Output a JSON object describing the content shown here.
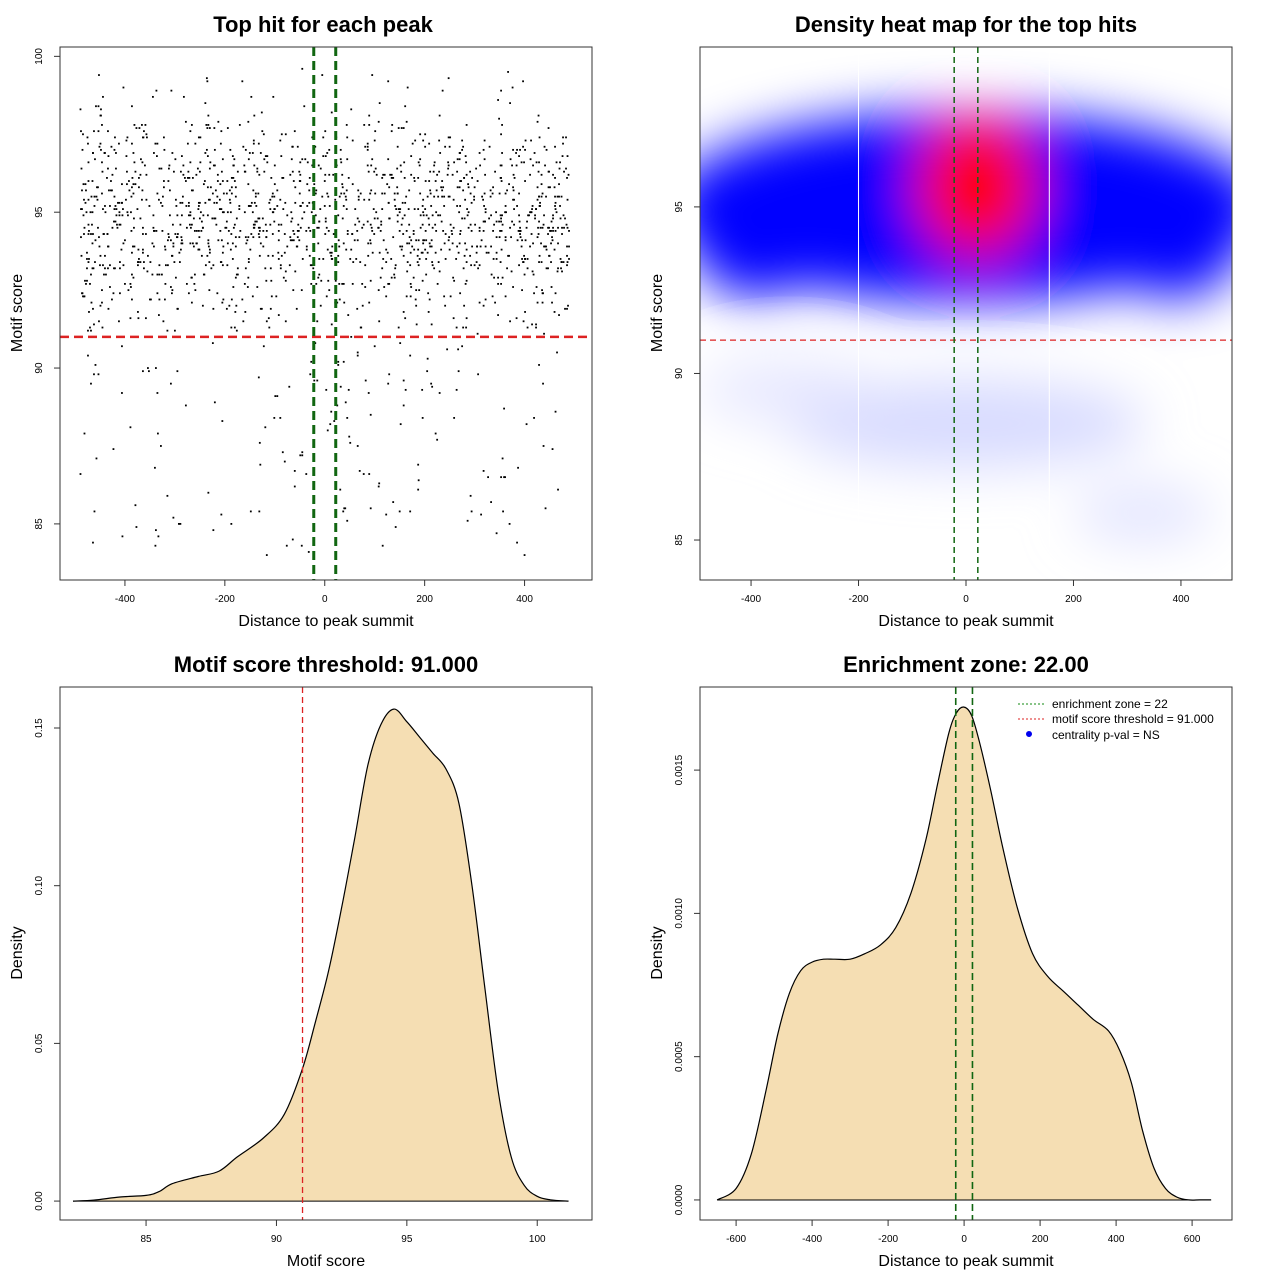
{
  "chart_data": [
    {
      "type": "scatter",
      "title": "Top hit for each peak",
      "xlabel": "Distance to peak summit",
      "ylabel": "Motif score",
      "xlim": [
        -530,
        535
      ],
      "ylim": [
        83.2,
        100.3
      ],
      "xticks": [
        "-400",
        "-200",
        "0",
        "200",
        "400"
      ],
      "yticks": [
        "85",
        "90",
        "95",
        "100"
      ],
      "hline": 91.0,
      "vlines": [
        -22,
        22
      ],
      "points_note_count": 1700,
      "colors": {
        "points": "#000000",
        "hline": "#dd2222",
        "vlines": "#116611"
      }
    },
    {
      "type": "heatmap",
      "title": "Density heat map for the top hits",
      "xlabel": "Distance to peak summit",
      "ylabel": "Motif score",
      "xlim": [
        -495,
        495
      ],
      "ylim": [
        83.8,
        99.8
      ],
      "xticks": [
        "-400",
        "-200",
        "0",
        "200",
        "400"
      ],
      "yticks": [
        "85",
        "90",
        "95"
      ],
      "hline": 91.0,
      "vlines": [
        -22,
        22
      ],
      "white_vlines": [
        -200,
        155
      ],
      "colors": {
        "low": "#ffffff",
        "mid": "#0000ff",
        "high": "#ff0000",
        "hline": "#dd2222",
        "vlines": "#116611"
      }
    },
    {
      "type": "area",
      "title": "Motif score threshold: 91.000",
      "xlabel": "Motif score",
      "ylabel": "Density",
      "xlim": [
        81.7,
        102.1
      ],
      "ylim": [
        -0.006,
        0.163
      ],
      "xticks": [
        "85",
        "90",
        "95",
        "100"
      ],
      "yticks": [
        "0.00",
        "0.05",
        "0.10",
        "0.15"
      ],
      "vline": 91.0,
      "x": [
        82.2,
        83.0,
        84.0,
        85.0,
        85.5,
        86.0,
        87.0,
        87.8,
        88.5,
        89.5,
        90.3,
        91.0,
        91.5,
        92.0,
        92.5,
        93.0,
        93.5,
        94.0,
        94.5,
        95.0,
        95.5,
        96.0,
        96.5,
        97.0,
        97.5,
        98.0,
        98.5,
        99.0,
        99.5,
        100.0,
        100.5,
        101.2
      ],
      "y": [
        0.0,
        0.0003,
        0.0013,
        0.0018,
        0.003,
        0.0055,
        0.0078,
        0.0095,
        0.014,
        0.02,
        0.0275,
        0.042,
        0.057,
        0.073,
        0.093,
        0.115,
        0.138,
        0.151,
        0.156,
        0.152,
        0.147,
        0.142,
        0.137,
        0.126,
        0.1,
        0.067,
        0.035,
        0.014,
        0.005,
        0.0015,
        0.0004,
        0.0
      ],
      "colors": {
        "fill": "#f5deb3",
        "line": "#000000",
        "vline": "#dd2222"
      }
    },
    {
      "type": "area",
      "title": "Enrichment zone: 22.00",
      "xlabel": "Distance to peak summit",
      "ylabel": "Density",
      "xlim": [
        -695,
        705
      ],
      "ylim": [
        -7e-05,
        0.00179
      ],
      "xticks": [
        "-600",
        "-400",
        "-200",
        "0",
        "200",
        "400",
        "600"
      ],
      "yticks": [
        "0.0000",
        "0.0005",
        "0.0010",
        "0.0015"
      ],
      "vlines": [
        -22,
        22
      ],
      "x": [
        -650,
        -600,
        -560,
        -520,
        -490,
        -460,
        -430,
        -400,
        -370,
        -340,
        -300,
        -260,
        -220,
        -180,
        -140,
        -100,
        -70,
        -40,
        -20,
        0,
        20,
        40,
        70,
        100,
        140,
        180,
        220,
        260,
        300,
        340,
        380,
        410,
        440,
        470,
        500,
        530,
        560,
        590,
        620,
        650
      ],
      "y": [
        0.0,
        4e-05,
        0.00016,
        0.00039,
        0.00058,
        0.00072,
        0.0008,
        0.00083,
        0.00084,
        0.00084,
        0.00084,
        0.00086,
        0.00089,
        0.00095,
        0.00107,
        0.00126,
        0.00145,
        0.00163,
        0.0017,
        0.00172,
        0.00169,
        0.0016,
        0.00143,
        0.00124,
        0.00102,
        0.00086,
        0.00078,
        0.00073,
        0.00068,
        0.00063,
        0.00059,
        0.00052,
        0.00041,
        0.00024,
        0.00011,
        4e-05,
        1e-05,
        0.0,
        0.0,
        0.0
      ],
      "legend": [
        "enrichment zone = 22",
        "motif score threshold = 91.000",
        "centrality p-val = NS"
      ],
      "legend_position": "top-right",
      "colors": {
        "fill": "#f5deb3",
        "line": "#000000",
        "vlines": "#116611",
        "legend_green": "#118811",
        "legend_red": "#dd2222",
        "legend_blue": "#0000ee"
      }
    }
  ]
}
